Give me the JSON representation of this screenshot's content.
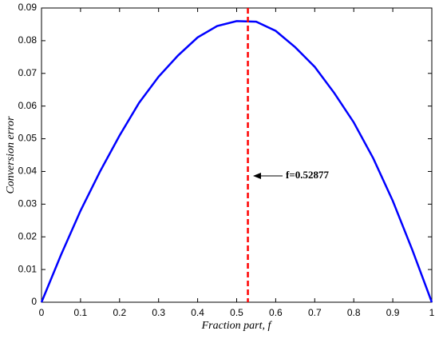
{
  "chart_data": {
    "type": "line",
    "xlabel": "Fraction part, f",
    "ylabel": "Conversion error",
    "annotation": "f=0.52877",
    "vline": 0.52877,
    "vline_color": "#ff0000",
    "x": [
      0,
      0.05,
      0.1,
      0.15,
      0.2,
      0.25,
      0.3,
      0.35,
      0.4,
      0.45,
      0.5,
      0.55,
      0.6,
      0.65,
      0.7,
      0.75,
      0.8,
      0.85,
      0.9,
      0.95,
      1
    ],
    "series": [
      {
        "color": "#0000ff",
        "values": [
          0,
          0.0145,
          0.028,
          0.04,
          0.051,
          0.061,
          0.069,
          0.0755,
          0.081,
          0.0845,
          0.086,
          0.0858,
          0.083,
          0.078,
          0.072,
          0.064,
          0.055,
          0.044,
          0.031,
          0.016,
          0
        ]
      }
    ],
    "xlim": [
      0,
      1
    ],
    "xticks": [
      0,
      0.1,
      0.2,
      0.3,
      0.4,
      0.5,
      0.6,
      0.7,
      0.8,
      0.9,
      1
    ],
    "ylim": [
      0,
      0.09
    ],
    "yticks": [
      0,
      0.01,
      0.02,
      0.03,
      0.04,
      0.05,
      0.06,
      0.07,
      0.08,
      0.09
    ]
  }
}
